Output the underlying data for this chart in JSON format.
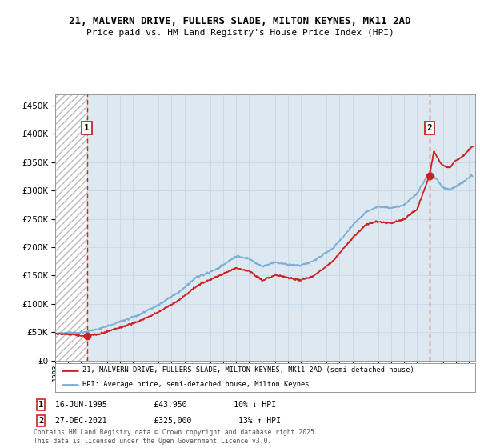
{
  "title_line1": "21, MALVERN DRIVE, FULLERS SLADE, MILTON KEYNES, MK11 2AD",
  "title_line2": "Price paid vs. HM Land Registry's House Price Index (HPI)",
  "ytick_values": [
    0,
    50000,
    100000,
    150000,
    200000,
    250000,
    300000,
    350000,
    400000,
    450000
  ],
  "ylim": [
    0,
    470000
  ],
  "xlim_start": 1993.0,
  "xlim_end": 2025.5,
  "marker1_date": 1995.45,
  "marker1_price": 43950,
  "marker2_date": 2021.98,
  "marker2_price": 325000,
  "legend_line1": "21, MALVERN DRIVE, FULLERS SLADE, MILTON KEYNES, MK11 2AD (semi-detached house)",
  "legend_line2": "HPI: Average price, semi-detached house, Milton Keynes",
  "marker1_text": "16-JUN-1995          £43,950          10% ↓ HPI",
  "marker2_text": "27-DEC-2021          £325,000          13% ↑ HPI",
  "footnote": "Contains HM Land Registry data © Crown copyright and database right 2025.\nThis data is licensed under the Open Government Licence v3.0.",
  "hpi_color": "#7bafd4",
  "price_color": "#cc2222",
  "grid_color": "#c5d8e8",
  "plot_bg_color": "#dde8f0",
  "hatch_color": "#bbbbbb"
}
